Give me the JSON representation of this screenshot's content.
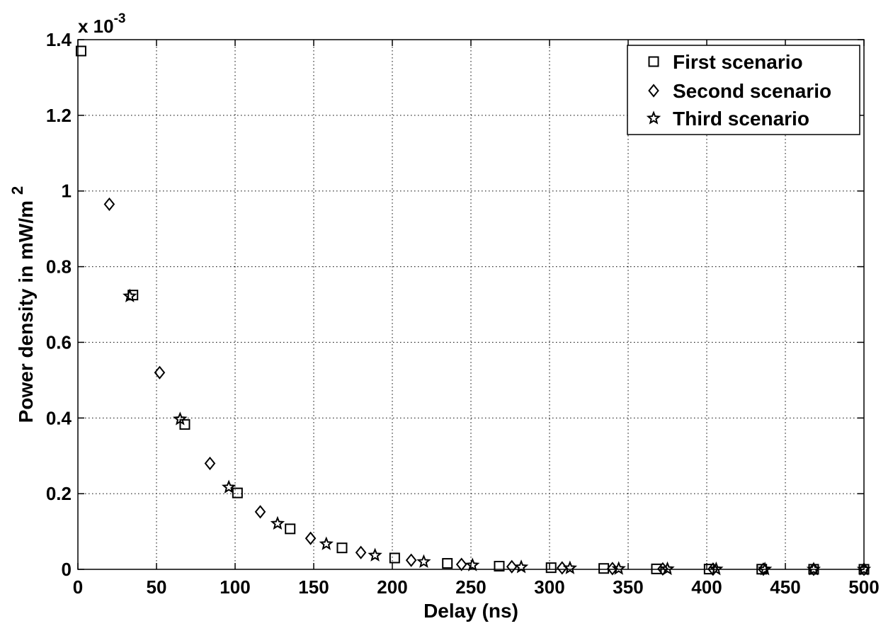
{
  "chart_data": {
    "type": "scatter",
    "xlabel": "Delay (ns)",
    "ylabel": "Power density in mW/m",
    "ylabel_superscript": "2",
    "y_multiplier": "x 10",
    "y_multiplier_exponent": "-3",
    "xlim": [
      0,
      500
    ],
    "ylim": [
      0,
      0.0014
    ],
    "x_ticks": [
      0,
      50,
      100,
      150,
      200,
      250,
      300,
      350,
      400,
      450,
      500
    ],
    "x_tick_labels": [
      "0",
      "50",
      "100",
      "150",
      "200",
      "250",
      "300",
      "350",
      "400",
      "450",
      "500"
    ],
    "y_ticks": [
      0,
      0.0002,
      0.0004,
      0.0006,
      0.0008,
      0.001,
      0.0012,
      0.0014
    ],
    "y_tick_labels": [
      "0",
      "0.2",
      "0.4",
      "0.6",
      "0.8",
      "1",
      "1.2",
      "1.4"
    ],
    "grid": true,
    "legend_position": "top-right",
    "series": [
      {
        "name": "First scenario",
        "marker": "square",
        "x": [
          2,
          35,
          68,
          101.5,
          135,
          168,
          201.5,
          235,
          268,
          301,
          334.5,
          368,
          401.5,
          435,
          468,
          500
        ],
        "y": [
          0.00137,
          0.000725,
          0.000383,
          0.000202,
          0.000107,
          5.67e-05,
          3e-05,
          1.58e-05,
          8.4e-06,
          4.4e-06,
          2.4e-06,
          1.2e-06,
          7e-07,
          4e-07,
          2e-07,
          1e-07
        ]
      },
      {
        "name": "Second scenario",
        "marker": "diamond",
        "x": [
          20,
          52,
          84,
          116,
          148,
          180,
          212,
          244,
          276,
          308,
          340,
          372,
          404,
          436,
          468,
          500
        ],
        "y": [
          0.000965,
          0.00052,
          0.00028,
          0.000152,
          8.2e-05,
          4.45e-05,
          2.4e-05,
          1.3e-05,
          7e-06,
          3.8e-06,
          2e-06,
          1.1e-06,
          6e-07,
          3e-07,
          2e-07,
          1e-07
        ]
      },
      {
        "name": "Third scenario",
        "marker": "star",
        "x": [
          33,
          65,
          96,
          127,
          158,
          189,
          220,
          251,
          282,
          313,
          344,
          375,
          406,
          437,
          468,
          500
        ],
        "y": [
          0.000722,
          0.000397,
          0.000217,
          0.000121,
          6.7e-05,
          3.7e-05,
          2e-05,
          1.1e-05,
          6e-06,
          3.3e-06,
          1.8e-06,
          1e-06,
          5e-07,
          3e-07,
          2e-07,
          1e-07
        ]
      }
    ]
  }
}
